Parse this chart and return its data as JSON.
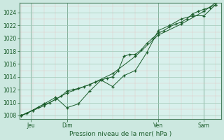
{
  "xlabel": "Pression niveau de la mer( hPa )",
  "bg_color": "#cce8e0",
  "plot_bg": "#d8f0ec",
  "major_grid_color": "#a0c8b8",
  "minor_grid_color": "#e8b4b4",
  "line_color": "#1a5c2a",
  "spine_color": "#4a8060",
  "ylim": [
    1007.5,
    1025.5
  ],
  "yticks": [
    1008,
    1010,
    1012,
    1014,
    1016,
    1018,
    1020,
    1022,
    1024
  ],
  "xlim": [
    -2,
    210
  ],
  "day_positions": [
    10,
    48,
    144,
    192
  ],
  "day_labels": [
    "Jeu",
    "Dim",
    "Ven",
    "Sam"
  ],
  "series1": [
    [
      0,
      1008.0
    ],
    [
      6,
      1008.3
    ],
    [
      12,
      1008.8
    ],
    [
      18,
      1009.3
    ],
    [
      24,
      1009.7
    ],
    [
      30,
      1010.0
    ],
    [
      36,
      1010.5
    ],
    [
      42,
      1011.0
    ],
    [
      48,
      1011.8
    ],
    [
      54,
      1012.0
    ],
    [
      60,
      1012.2
    ],
    [
      66,
      1012.5
    ],
    [
      72,
      1012.8
    ],
    [
      78,
      1013.2
    ],
    [
      84,
      1013.5
    ],
    [
      90,
      1013.8
    ],
    [
      96,
      1014.0
    ],
    [
      102,
      1015.0
    ],
    [
      108,
      1017.2
    ],
    [
      114,
      1017.5
    ],
    [
      120,
      1017.5
    ],
    [
      126,
      1018.2
    ],
    [
      132,
      1019.2
    ],
    [
      138,
      1020.0
    ],
    [
      144,
      1020.8
    ],
    [
      150,
      1021.2
    ],
    [
      156,
      1021.8
    ],
    [
      162,
      1022.2
    ],
    [
      168,
      1022.5
    ],
    [
      174,
      1023.0
    ],
    [
      180,
      1023.8
    ],
    [
      186,
      1024.2
    ],
    [
      192,
      1024.5
    ],
    [
      198,
      1024.8
    ],
    [
      204,
      1025.2
    ]
  ],
  "series2": [
    [
      0,
      1008.0
    ],
    [
      12,
      1008.8
    ],
    [
      24,
      1009.8
    ],
    [
      36,
      1010.8
    ],
    [
      48,
      1009.2
    ],
    [
      60,
      1009.8
    ],
    [
      72,
      1011.8
    ],
    [
      84,
      1013.5
    ],
    [
      96,
      1012.5
    ],
    [
      108,
      1014.2
    ],
    [
      120,
      1015.0
    ],
    [
      132,
      1017.8
    ],
    [
      144,
      1021.2
    ],
    [
      156,
      1022.0
    ],
    [
      168,
      1023.0
    ],
    [
      180,
      1023.5
    ],
    [
      192,
      1023.5
    ],
    [
      204,
      1025.2
    ]
  ],
  "series3": [
    [
      0,
      1008.0
    ],
    [
      24,
      1009.5
    ],
    [
      48,
      1011.5
    ],
    [
      72,
      1012.8
    ],
    [
      96,
      1014.5
    ],
    [
      120,
      1017.2
    ],
    [
      144,
      1020.5
    ],
    [
      168,
      1022.2
    ],
    [
      192,
      1024.2
    ],
    [
      204,
      1025.5
    ]
  ]
}
